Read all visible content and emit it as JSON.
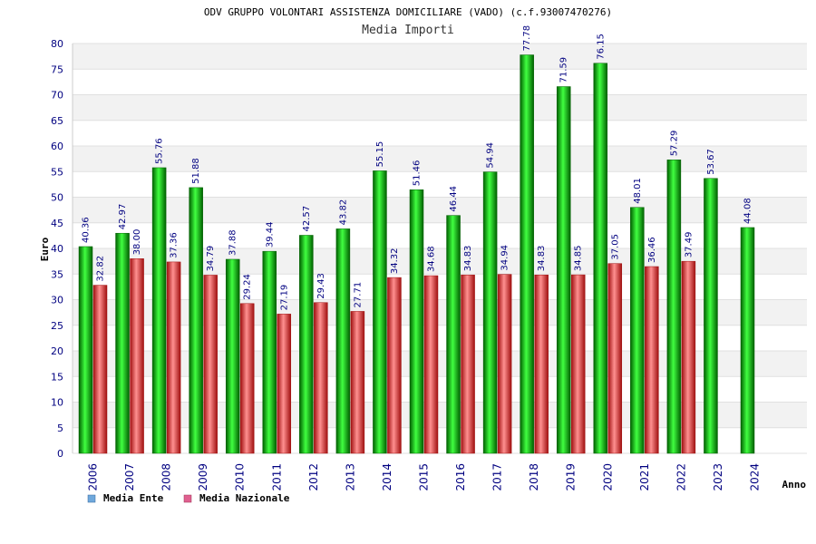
{
  "chart_data": {
    "type": "bar",
    "title": "ODV GRUPPO VOLONTARI ASSISTENZA DOMICILIARE (VADO) (c.f.93007470276)",
    "subtitle": "Media Importi",
    "xlabel": "Anno",
    "ylabel": "Euro",
    "ylim": [
      0,
      80
    ],
    "yticks": [
      0,
      5,
      10,
      15,
      20,
      25,
      30,
      35,
      40,
      45,
      50,
      55,
      60,
      65,
      70,
      75,
      80
    ],
    "categories": [
      "2006",
      "2007",
      "2008",
      "2009",
      "2010",
      "2011",
      "2012",
      "2013",
      "2014",
      "2015",
      "2016",
      "2017",
      "2018",
      "2019",
      "2020",
      "2021",
      "2022",
      "2023",
      "2024"
    ],
    "series": [
      {
        "name": "Media Ente",
        "values": [
          40.36,
          42.97,
          55.76,
          51.88,
          37.88,
          39.44,
          42.57,
          43.82,
          55.15,
          51.46,
          46.44,
          54.94,
          77.78,
          71.59,
          76.15,
          48.01,
          57.29,
          53.67,
          44.08
        ],
        "labels": [
          "40.36",
          "42.97",
          "55.76",
          "51.88",
          "37.88",
          "39.44",
          "42.57",
          "43.82",
          "55.15",
          "51.46",
          "46.44",
          "54.94",
          "77.78",
          "71.59",
          "76.15",
          "48.01",
          "57.29",
          "53.67",
          "44.08"
        ]
      },
      {
        "name": "Media Nazionale",
        "values": [
          32.82,
          38.0,
          37.36,
          34.79,
          29.24,
          27.19,
          29.43,
          27.71,
          34.32,
          34.68,
          34.83,
          34.94,
          34.83,
          34.85,
          37.05,
          36.46,
          37.49,
          null,
          null
        ],
        "labels": [
          "32.82",
          "38.00",
          "37.36",
          "34.79",
          "29.24",
          "27.19",
          "29.43",
          "27.71",
          "34.32",
          "34.68",
          "34.83",
          "34.94",
          "34.83",
          "34.85",
          "37.05",
          "36.46",
          "37.49",
          "",
          ""
        ]
      }
    ],
    "colors": {
      "ente": "#00a000",
      "ente_light": "#40ff40",
      "ente_dark": "#006000",
      "nazionale": "#e02020",
      "nazionale_light": "#ff9090",
      "nazionale_dark": "#a01010",
      "legend_ente": "#6fa8dc",
      "legend_nazionale": "#e06090",
      "grid_band": "#f2f2f2",
      "tick_text": "#000080"
    },
    "grid": true,
    "legend_position": "bottom-left"
  }
}
